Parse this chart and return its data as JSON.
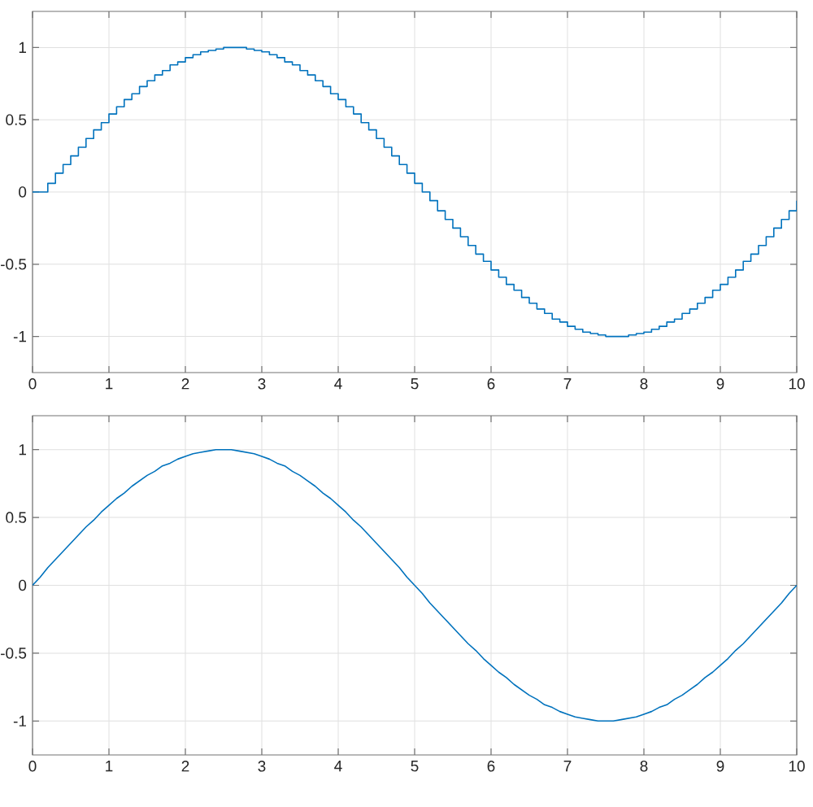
{
  "chart_data": [
    {
      "type": "step",
      "color": "#0072bd",
      "grid": true,
      "xlim": [
        0,
        10
      ],
      "ylim": [
        -1.25,
        1.25
      ],
      "xticks": [
        0,
        1,
        2,
        3,
        4,
        5,
        6,
        7,
        8,
        9,
        10
      ],
      "yticks": [
        -1,
        -0.5,
        0,
        0.5,
        1
      ],
      "x": [
        0,
        0.1,
        0.2,
        0.3,
        0.4,
        0.5,
        0.6,
        0.7,
        0.8,
        0.9,
        1,
        1.1,
        1.2,
        1.3,
        1.4,
        1.5,
        1.6,
        1.7,
        1.8,
        1.9,
        2,
        2.1,
        2.2,
        2.3,
        2.4,
        2.5,
        2.6,
        2.7,
        2.8,
        2.9,
        3,
        3.1,
        3.2,
        3.3,
        3.4,
        3.5,
        3.6,
        3.7,
        3.8,
        3.9,
        4,
        4.1,
        4.2,
        4.3,
        4.4,
        4.5,
        4.6,
        4.7,
        4.8,
        4.9,
        5,
        5.1,
        5.2,
        5.3,
        5.4,
        5.5,
        5.6,
        5.7,
        5.8,
        5.9,
        6,
        6.1,
        6.2,
        6.3,
        6.4,
        6.5,
        6.6,
        6.7,
        6.8,
        6.9,
        7,
        7.1,
        7.2,
        7.3,
        7.4,
        7.5,
        7.6,
        7.7,
        7.8,
        7.9,
        8,
        8.1,
        8.2,
        8.3,
        8.4,
        8.5,
        8.6,
        8.7,
        8.8,
        8.9,
        9,
        9.1,
        9.2,
        9.3,
        9.4,
        9.5,
        9.6,
        9.7,
        9.8,
        9.9,
        10
      ],
      "values": [
        0,
        0,
        0.06,
        0.13,
        0.19,
        0.25,
        0.31,
        0.37,
        0.43,
        0.48,
        0.54,
        0.59,
        0.64,
        0.68,
        0.73,
        0.77,
        0.81,
        0.84,
        0.88,
        0.9,
        0.93,
        0.95,
        0.97,
        0.98,
        0.99,
        1,
        1,
        1,
        0.99,
        0.98,
        0.97,
        0.95,
        0.93,
        0.9,
        0.88,
        0.84,
        0.81,
        0.77,
        0.73,
        0.68,
        0.64,
        0.59,
        0.54,
        0.48,
        0.43,
        0.37,
        0.31,
        0.25,
        0.19,
        0.13,
        0.06,
        0,
        -0.06,
        -0.13,
        -0.19,
        -0.25,
        -0.31,
        -0.37,
        -0.43,
        -0.48,
        -0.54,
        -0.59,
        -0.64,
        -0.68,
        -0.73,
        -0.77,
        -0.81,
        -0.84,
        -0.88,
        -0.9,
        -0.93,
        -0.95,
        -0.97,
        -0.98,
        -0.99,
        -1,
        -1,
        -1,
        -0.99,
        -0.98,
        -0.97,
        -0.95,
        -0.93,
        -0.9,
        -0.88,
        -0.84,
        -0.81,
        -0.77,
        -0.73,
        -0.68,
        -0.64,
        -0.59,
        -0.54,
        -0.48,
        -0.43,
        -0.37,
        -0.31,
        -0.25,
        -0.19,
        -0.13,
        -0.06
      ]
    },
    {
      "type": "line",
      "color": "#0072bd",
      "grid": true,
      "xlim": [
        0,
        10
      ],
      "ylim": [
        -1.25,
        1.25
      ],
      "xticks": [
        0,
        1,
        2,
        3,
        4,
        5,
        6,
        7,
        8,
        9,
        10
      ],
      "yticks": [
        -1,
        -0.5,
        0,
        0.5,
        1
      ],
      "x": [
        0,
        0.1,
        0.2,
        0.3,
        0.4,
        0.5,
        0.6,
        0.7,
        0.8,
        0.9,
        1,
        1.1,
        1.2,
        1.3,
        1.4,
        1.5,
        1.6,
        1.7,
        1.8,
        1.9,
        2,
        2.1,
        2.2,
        2.3,
        2.4,
        2.5,
        2.6,
        2.7,
        2.8,
        2.9,
        3,
        3.1,
        3.2,
        3.3,
        3.4,
        3.5,
        3.6,
        3.7,
        3.8,
        3.9,
        4,
        4.1,
        4.2,
        4.3,
        4.4,
        4.5,
        4.6,
        4.7,
        4.8,
        4.9,
        5,
        5.1,
        5.2,
        5.3,
        5.4,
        5.5,
        5.6,
        5.7,
        5.8,
        5.9,
        6,
        6.1,
        6.2,
        6.3,
        6.4,
        6.5,
        6.6,
        6.7,
        6.8,
        6.9,
        7,
        7.1,
        7.2,
        7.3,
        7.4,
        7.5,
        7.6,
        7.7,
        7.8,
        7.9,
        8,
        8.1,
        8.2,
        8.3,
        8.4,
        8.5,
        8.6,
        8.7,
        8.8,
        8.9,
        9,
        9.1,
        9.2,
        9.3,
        9.4,
        9.5,
        9.6,
        9.7,
        9.8,
        9.9,
        10
      ],
      "values": [
        0,
        0.06,
        0.13,
        0.19,
        0.25,
        0.31,
        0.37,
        0.43,
        0.48,
        0.54,
        0.59,
        0.64,
        0.68,
        0.73,
        0.77,
        0.81,
        0.84,
        0.88,
        0.9,
        0.93,
        0.95,
        0.97,
        0.98,
        0.99,
        1,
        1,
        1,
        0.99,
        0.98,
        0.97,
        0.95,
        0.93,
        0.9,
        0.88,
        0.84,
        0.81,
        0.77,
        0.73,
        0.68,
        0.64,
        0.59,
        0.54,
        0.48,
        0.43,
        0.37,
        0.31,
        0.25,
        0.19,
        0.13,
        0.06,
        0,
        -0.06,
        -0.13,
        -0.19,
        -0.25,
        -0.31,
        -0.37,
        -0.43,
        -0.48,
        -0.54,
        -0.59,
        -0.64,
        -0.68,
        -0.73,
        -0.77,
        -0.81,
        -0.84,
        -0.88,
        -0.9,
        -0.93,
        -0.95,
        -0.97,
        -0.98,
        -0.99,
        -1,
        -1,
        -1,
        -0.99,
        -0.98,
        -0.97,
        -0.95,
        -0.93,
        -0.9,
        -0.88,
        -0.84,
        -0.81,
        -0.77,
        -0.73,
        -0.68,
        -0.64,
        -0.59,
        -0.54,
        -0.48,
        -0.43,
        -0.37,
        -0.31,
        -0.25,
        -0.19,
        -0.13,
        -0.06,
        0
      ]
    }
  ]
}
